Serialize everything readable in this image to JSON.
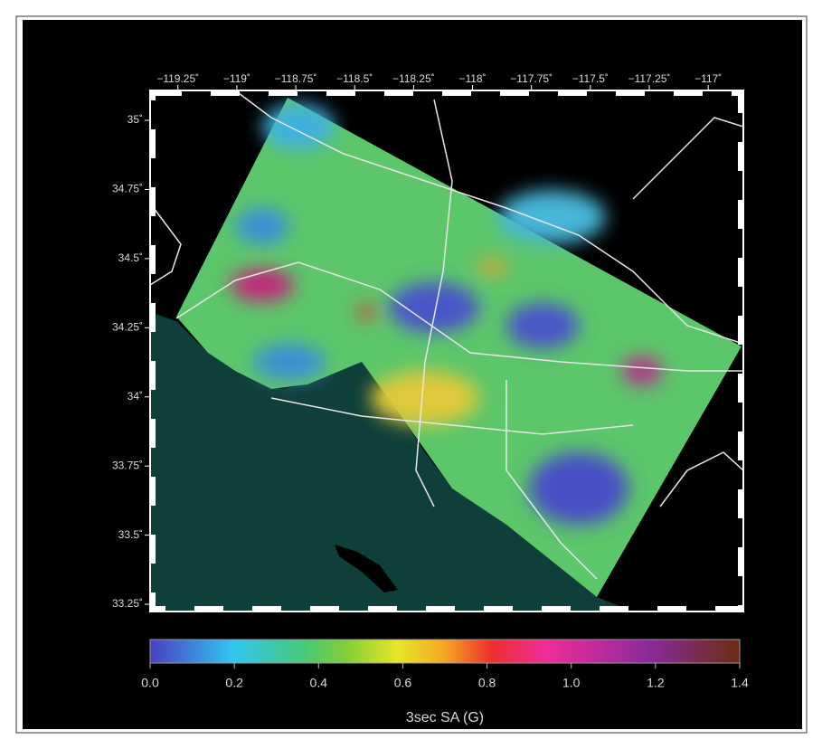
{
  "map": {
    "xlim": [
      -119.368,
      -116.851
    ],
    "xticks": [
      {
        "value": -119.25,
        "label": "−119.25˚"
      },
      {
        "value": -119,
        "label": "−119˚"
      },
      {
        "value": -118.75,
        "label": "−118.75˚"
      },
      {
        "value": -118.5,
        "label": "−118.5˚"
      },
      {
        "value": -118.25,
        "label": "−118.25˚"
      },
      {
        "value": -118,
        "label": "−118˚"
      },
      {
        "value": -117.75,
        "label": "−117.75˚"
      },
      {
        "value": -117.5,
        "label": "−117.5˚"
      },
      {
        "value": -117.25,
        "label": "−117.25˚"
      },
      {
        "value": -117,
        "label": "−117˚"
      }
    ],
    "ylim": [
      33.224,
      35.108
    ],
    "yticks": [
      {
        "value": 33.25,
        "label": "33.25˚"
      },
      {
        "value": 33.5,
        "label": "33.5˚"
      },
      {
        "value": 33.75,
        "label": "33.75˚"
      },
      {
        "value": 34,
        "label": "34˚"
      },
      {
        "value": 34.25,
        "label": "34.25˚"
      },
      {
        "value": 34.5,
        "label": "34.5˚"
      },
      {
        "value": 34.75,
        "label": "34.75˚"
      },
      {
        "value": 35,
        "label": "35˚"
      }
    ]
  },
  "colorbar": {
    "label": "3sec SA (G)",
    "lim": [
      0,
      1.4
    ],
    "ticks": [
      {
        "value": 0,
        "label": "0.0"
      },
      0.2,
      0.4,
      0.6,
      0.8,
      {
        "value": 1,
        "label": "1.0"
      },
      1.2,
      1.4
    ]
  }
}
